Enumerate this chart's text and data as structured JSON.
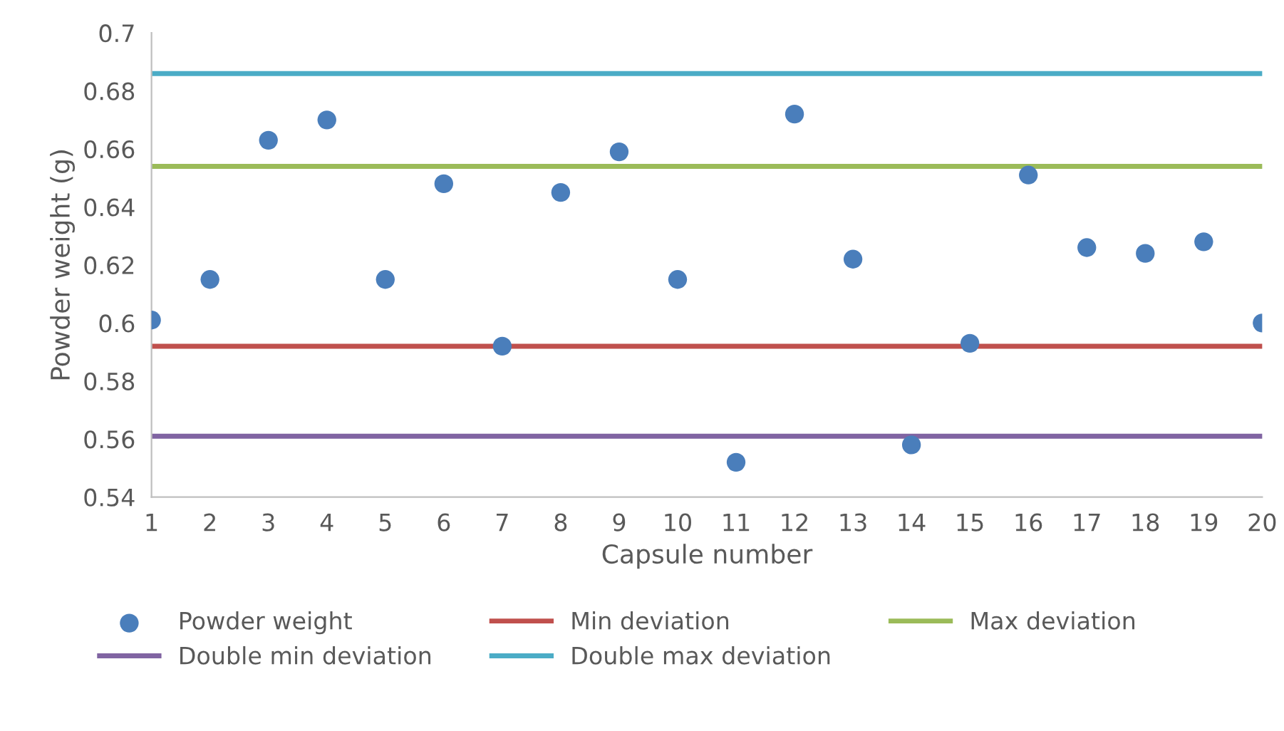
{
  "chart_data": {
    "type": "scatter",
    "xlabel": "Capsule number",
    "ylabel": "Powder weight (g)",
    "x": [
      1,
      2,
      3,
      4,
      5,
      6,
      7,
      8,
      9,
      10,
      11,
      12,
      13,
      14,
      15,
      16,
      17,
      18,
      19,
      20
    ],
    "xlim": [
      1,
      20
    ],
    "xticks": [
      1,
      2,
      3,
      4,
      5,
      6,
      7,
      8,
      9,
      10,
      11,
      12,
      13,
      14,
      15,
      16,
      17,
      18,
      19,
      20
    ],
    "ylim": [
      0.54,
      0.7
    ],
    "yticks": [
      0.54,
      0.56,
      0.58,
      0.6,
      0.62,
      0.64,
      0.66,
      0.68,
      0.7
    ],
    "grid": false,
    "legend": "bottom",
    "marker": "circle",
    "series": [
      {
        "name": "Powder weight",
        "color": "#4a7ebb",
        "values": [
          0.601,
          0.615,
          0.663,
          0.67,
          0.615,
          0.648,
          0.592,
          0.645,
          0.659,
          0.615,
          0.552,
          0.672,
          0.622,
          0.558,
          0.593,
          0.651,
          0.626,
          0.624,
          0.628,
          0.6
        ]
      }
    ],
    "ref_lines": [
      {
        "axis": "y",
        "value": 0.592,
        "label": "Min deviation",
        "color": "#c0504d"
      },
      {
        "axis": "y",
        "value": 0.654,
        "label": "Max deviation",
        "color": "#9bbb59"
      },
      {
        "axis": "y",
        "value": 0.561,
        "label": "Double min deviation",
        "color": "#8064a2"
      },
      {
        "axis": "y",
        "value": 0.686,
        "label": "Double max deviation",
        "color": "#4bacc6"
      }
    ]
  }
}
